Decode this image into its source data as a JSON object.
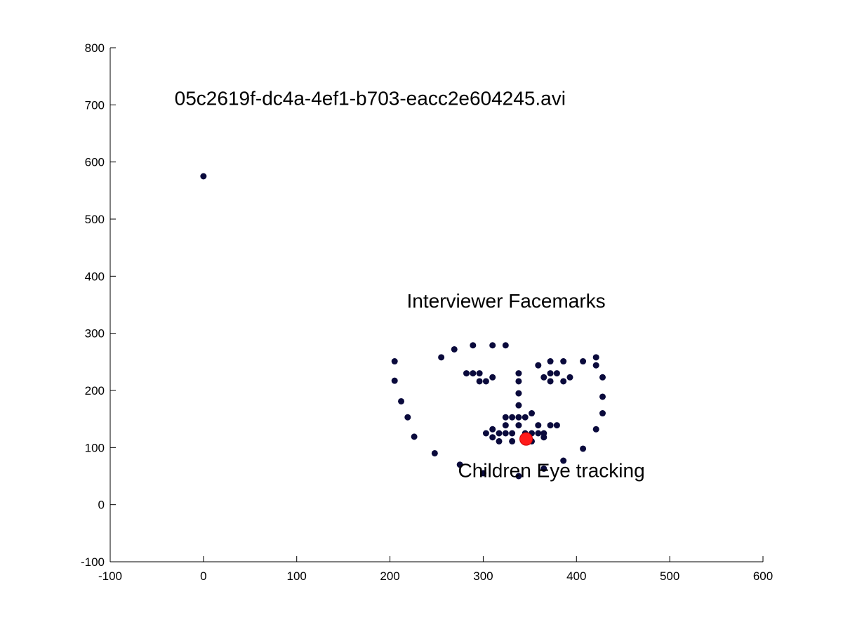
{
  "chart_data": {
    "type": "scatter",
    "xlim": [
      -100,
      600
    ],
    "ylim": [
      -100,
      800
    ],
    "x_ticks": [
      -100,
      0,
      100,
      200,
      300,
      400,
      500,
      600
    ],
    "y_ticks": [
      -100,
      0,
      100,
      200,
      300,
      400,
      500,
      600,
      700,
      800
    ],
    "grid": false,
    "colors": {
      "facemark": "#0a0a3c",
      "eye": "#ff1a1a",
      "axis": "#000000"
    },
    "annotations": [
      {
        "text": "05c2619f-dc4a-4ef1-b703-eacc2e604245.avi",
        "x": -31,
        "y": 700
      },
      {
        "text": "Interviewer Facemarks",
        "x": 218,
        "y": 345
      },
      {
        "text": "Children Eye tracking",
        "x": 273,
        "y": 48
      }
    ],
    "series": [
      {
        "name": "",
        "marker": "dot",
        "points": [
          [
            0,
            575
          ],
          [
            205,
            251
          ],
          [
            205,
            217
          ],
          [
            212,
            181
          ],
          [
            219,
            153
          ],
          [
            226,
            119
          ],
          [
            248,
            90
          ],
          [
            275,
            70
          ],
          [
            300,
            55
          ],
          [
            338,
            50
          ],
          [
            365,
            63
          ],
          [
            386,
            77
          ],
          [
            407,
            98
          ],
          [
            421,
            132
          ],
          [
            428,
            160
          ],
          [
            428,
            189
          ],
          [
            428,
            223
          ],
          [
            421,
            244
          ],
          [
            421,
            258
          ],
          [
            255,
            258
          ],
          [
            269,
            272
          ],
          [
            289,
            279
          ],
          [
            310,
            279
          ],
          [
            324,
            279
          ],
          [
            359,
            244
          ],
          [
            372,
            251
          ],
          [
            386,
            251
          ],
          [
            407,
            251
          ],
          [
            282,
            230
          ],
          [
            289,
            230
          ],
          [
            296,
            230
          ],
          [
            296,
            216
          ],
          [
            303,
            216
          ],
          [
            310,
            223
          ],
          [
            365,
            223
          ],
          [
            372,
            230
          ],
          [
            379,
            230
          ],
          [
            386,
            216
          ],
          [
            393,
            223
          ],
          [
            372,
            216
          ],
          [
            338,
            230
          ],
          [
            338,
            216
          ],
          [
            338,
            195
          ],
          [
            338,
            174
          ],
          [
            324,
            153
          ],
          [
            331,
            153
          ],
          [
            338,
            153
          ],
          [
            345,
            153
          ],
          [
            352,
            160
          ],
          [
            324,
            139
          ],
          [
            338,
            139
          ],
          [
            359,
            139
          ],
          [
            372,
            139
          ],
          [
            379,
            139
          ],
          [
            303,
            125
          ],
          [
            310,
            132
          ],
          [
            317,
            125
          ],
          [
            324,
            125
          ],
          [
            331,
            125
          ],
          [
            345,
            125
          ],
          [
            352,
            125
          ],
          [
            359,
            125
          ],
          [
            365,
            125
          ],
          [
            310,
            118
          ],
          [
            317,
            111
          ],
          [
            331,
            111
          ],
          [
            352,
            111
          ],
          [
            365,
            118
          ]
        ]
      },
      {
        "name": "",
        "marker": "large-dot",
        "points": [
          [
            346,
            115
          ]
        ]
      }
    ]
  }
}
